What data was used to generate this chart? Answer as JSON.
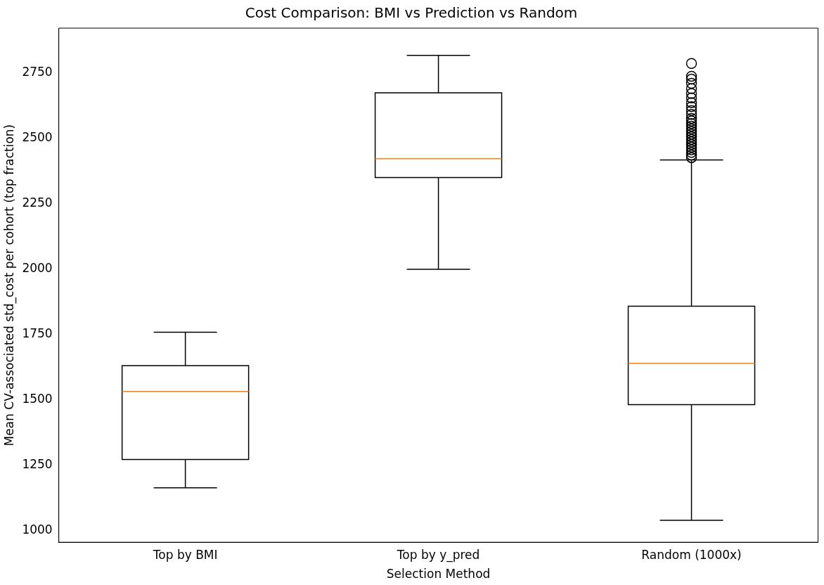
{
  "chart_data": {
    "type": "box",
    "title": "Cost Comparison: BMI vs Prediction vs Random",
    "xlabel": "Selection Method",
    "ylabel": "Mean CV-associated std_cost per cohort (top fraction)",
    "categories": [
      "Top by BMI",
      "Top by y_pred",
      "Random (1000x)"
    ],
    "ylim": [
      955,
      2920
    ],
    "yticks": [
      1000,
      1250,
      1500,
      1750,
      2000,
      2250,
      2500,
      2750
    ],
    "grid": false,
    "legend": false,
    "boxes": [
      {
        "low": 1163,
        "q1": 1271,
        "median": 1531,
        "q3": 1630,
        "high": 1758
      },
      {
        "low": 1998,
        "q1": 2349,
        "median": 2421,
        "q3": 2673,
        "high": 2816
      },
      {
        "low": 1039,
        "q1": 1481,
        "median": 1639,
        "q3": 1857,
        "high": 2416,
        "outliers": [
          2425,
          2435,
          2445,
          2455,
          2465,
          2475,
          2485,
          2495,
          2505,
          2515,
          2525,
          2535,
          2545,
          2555,
          2565,
          2575,
          2590,
          2605,
          2620,
          2635,
          2653,
          2670,
          2689,
          2709,
          2725,
          2736,
          2785
        ]
      }
    ],
    "color": "#000000"
  }
}
